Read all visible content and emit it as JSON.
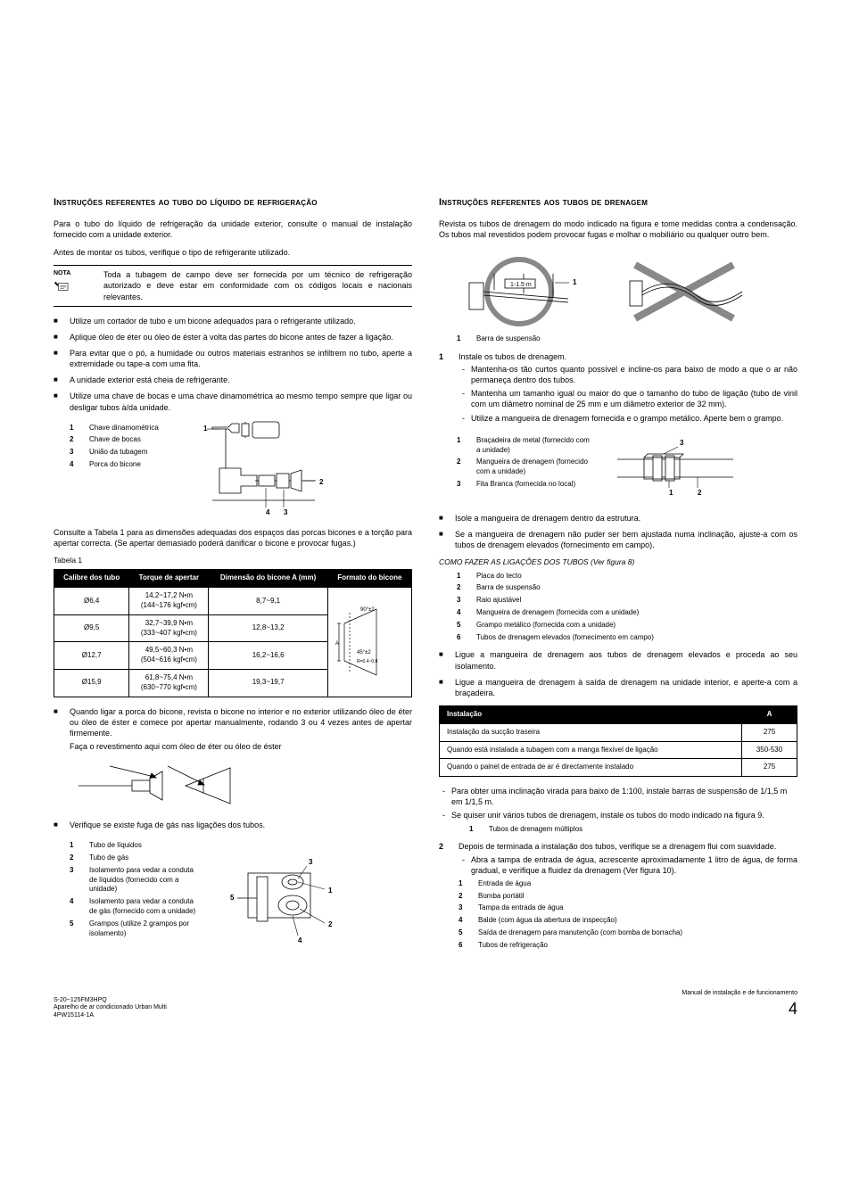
{
  "left": {
    "heading": "Instruções referentes ao tubo do líquido de refrigeração",
    "p1": "Para o tubo do líquido de refrigeração da unidade exterior, consulte o manual de instalação fornecido com a unidade exterior.",
    "p2": "Antes de montar os tubos, verifique o tipo de refrigerante utilizado.",
    "note_label": "NOTA",
    "note_text": "Toda a tubagem de campo deve ser fornecida por um técnico de refrigeração autorizado e deve estar em conformidade com os códigos locais e nacionais relevantes.",
    "bullets1": [
      "Utilize um cortador de tubo e um bicone adequados para o refrigerante utilizado.",
      "Aplique óleo de éter ou óleo de éster à volta das partes do bicone antes de fazer a ligação.",
      "Para evitar que o pó, a humidade ou outros materiais estranhos se infiltrem no tubo, aperte a extremidade ou tape-a com uma fita.",
      "A unidade exterior está cheia de refrigerante.",
      "Utilize uma chave de bocas e uma chave dinamométrica ao mesmo tempo sempre que ligar ou desligar tubos à/da unidade."
    ],
    "tools": [
      {
        "n": "1",
        "t": "Chave dinamométrica"
      },
      {
        "n": "2",
        "t": "Chave de bocas"
      },
      {
        "n": "3",
        "t": "União da tubagem"
      },
      {
        "n": "4",
        "t": "Porca do bicone"
      }
    ],
    "p3": "Consulte a Tabela 1 para as dimensões adequadas dos espaços das porcas bicones e a torção para apertar correcta. (Se apertar demasiado poderá danificar o bicone e provocar fugas.)",
    "table_caption": "Tabela 1",
    "table_headers": [
      "Calibre dos tubo",
      "Torque de apertar",
      "Dimensão do bicone A (mm)",
      "Formato do bicone"
    ],
    "table_rows": [
      {
        "c1": "Ø6,4",
        "c2a": "14,2~17,2 N•m",
        "c2b": "(144~176 kgf•cm)",
        "c3": "8,7~9,1"
      },
      {
        "c1": "Ø9,5",
        "c2a": "32,7~39,9 N•m",
        "c2b": "(333~407 kgf•cm)",
        "c3": "12,8~13,2"
      },
      {
        "c1": "Ø12,7",
        "c2a": "49,5~60,3 N•m",
        "c2b": "(504~616 kgf•cm)",
        "c3": "16,2~16,6"
      },
      {
        "c1": "Ø15,9",
        "c2a": "61,8~75,4 N•m",
        "c2b": "(630~770 kgf•cm)",
        "c3": "19,3~19,7"
      }
    ],
    "flare_labels": {
      "top": "90°±2",
      "bot": "45°±2",
      "r": "R=0.4~0.8",
      "a": "A"
    },
    "b2": "Quando ligar a porca do bicone, revista o bicone no interior e no exterior utilizando óleo de éter ou óleo de éster e comece por apertar manualmente, rodando 3 ou 4 vezes antes de apertar firmemente.",
    "b2b": "Faça o revestimento aqui com óleo de éter ou óleo de éster",
    "b3": "Verifique se existe fuga de gás nas ligações dos tubos.",
    "pipes": [
      {
        "n": "1",
        "t": "Tubo de líquidos"
      },
      {
        "n": "2",
        "t": "Tubo de gás"
      },
      {
        "n": "3",
        "t": "Isolamento para vedar a conduta de líquidos (fornecido com a unidade)"
      },
      {
        "n": "4",
        "t": "Isolamento para vedar a conduta de gás (fornecido com a unidade)"
      },
      {
        "n": "5",
        "t": "Grampos (utilize 2 grampos por isolamento)"
      }
    ]
  },
  "right": {
    "heading": "Instruções referentes aos tubos de drenagem",
    "p1": "Revista os tubos de drenagem do modo indicado na figura e tome medidas contra a condensação. Os tubos mal revestidos podem provocar fugas e molhar o mobiliário ou qualquer outro bem.",
    "fig1_caption_n": "1",
    "fig1_caption_t": "Barra de suspensão",
    "fig1_dim": "1-1.5 m",
    "step1_n": "1",
    "step1_t": "Instale os tubos de drenagem.",
    "step1_sub": [
      "Mantenha-os tão curtos quanto possível e incline-os para baixo de modo a que o ar não permaneça dentro dos tubos.",
      "Mantenha um tamanho igual ou maior do que o tamanho do tubo de ligação (tubo de vinil com um diâmetro nominal de 25 mm e um diâmetro exterior de 32 mm).",
      "Utilize a mangueira de drenagem fornecida e o grampo metálico. Aperte bem o grampo."
    ],
    "clamp": [
      {
        "n": "1",
        "t": "Braçadeira de metal (fornecido com a unidade)"
      },
      {
        "n": "2",
        "t": "Mangueira de drenagem (fornecido com a unidade)"
      },
      {
        "n": "3",
        "t": "Fita Branca (fornecida no local)"
      }
    ],
    "bullets2": [
      "Isole a mangueira de drenagem dentro da estrutura.",
      "Se a mangueira de drenagem não puder ser bem ajustada numa inclinação, ajuste-a com os tubos de drenagem elevados (fornecimento em campo)."
    ],
    "subhead": "COMO FAZER AS LIGAÇÕES DOS TUBOS (Ver figura 8)",
    "fig8": [
      {
        "n": "1",
        "t": "Placa do tecto"
      },
      {
        "n": "2",
        "t": "Barra de suspensão"
      },
      {
        "n": "3",
        "t": "Raio ajustável"
      },
      {
        "n": "4",
        "t": "Mangueira de drenagem (fornecida com a unidade)"
      },
      {
        "n": "5",
        "t": "Grampo metálico (fornecida com a unidade)"
      },
      {
        "n": "6",
        "t": "Tubos de drenagem elevados (fornecimento em campo)"
      }
    ],
    "bullets3": [
      "Ligue a mangueira de drenagem aos tubos de drenagem elevados e proceda ao seu isolamento.",
      "Ligue a mangueira de drenagem à saída de drenagem na unidade interior, e aperte-a com a braçadeira."
    ],
    "inst_h1": "Instalação",
    "inst_h2": "A",
    "inst_rows": [
      {
        "c1": "Instalação da sucção traseira",
        "c2": "275"
      },
      {
        "c1": "Quando está instalada a tubagem com a manga flexível de ligação",
        "c2": "350-530"
      },
      {
        "c1": "Quando o painel de entrada de ar é directamente instalado",
        "c2": "275"
      }
    ],
    "dash2": [
      "Para obter uma inclinação virada para baixo de 1:100, instale barras de suspensão de 1/1,5 m em 1/1,5 m.",
      "Se quiser unir vários tubos de drenagem, instale os tubos do modo indicado na figura 9."
    ],
    "fig9_n": "1",
    "fig9_t": "Tubos de drenagem múltiplos",
    "step2_n": "2",
    "step2_t": "Depois de terminada a instalação dos tubos, verifique se a drenagem flui com suavidade.",
    "dash3": [
      "Abra a tampa de entrada de água, acrescente aproximadamente 1 litro de água, de forma gradual, e verifique a fluidez da drenagem (Ver figura 10)."
    ],
    "fig10": [
      {
        "n": "1",
        "t": "Entrada de água"
      },
      {
        "n": "2",
        "t": "Bomba portátil"
      },
      {
        "n": "3",
        "t": "Tampa da entrada de água"
      },
      {
        "n": "4",
        "t": "Balde (com água da abertura de inspecção)"
      },
      {
        "n": "5",
        "t": "Saída de drenagem para manutenção (com bomba de borracha)"
      },
      {
        "n": "6",
        "t": "Tubos de refrigeração"
      }
    ]
  },
  "footer": {
    "l1": "S-20~125FM3HPQ",
    "l2": "Aparelho de ar condicionado Urban Multi",
    "l3": "4PW15114-1A",
    "r1": "Manual de instalação e de funcionamento",
    "page": "4"
  }
}
